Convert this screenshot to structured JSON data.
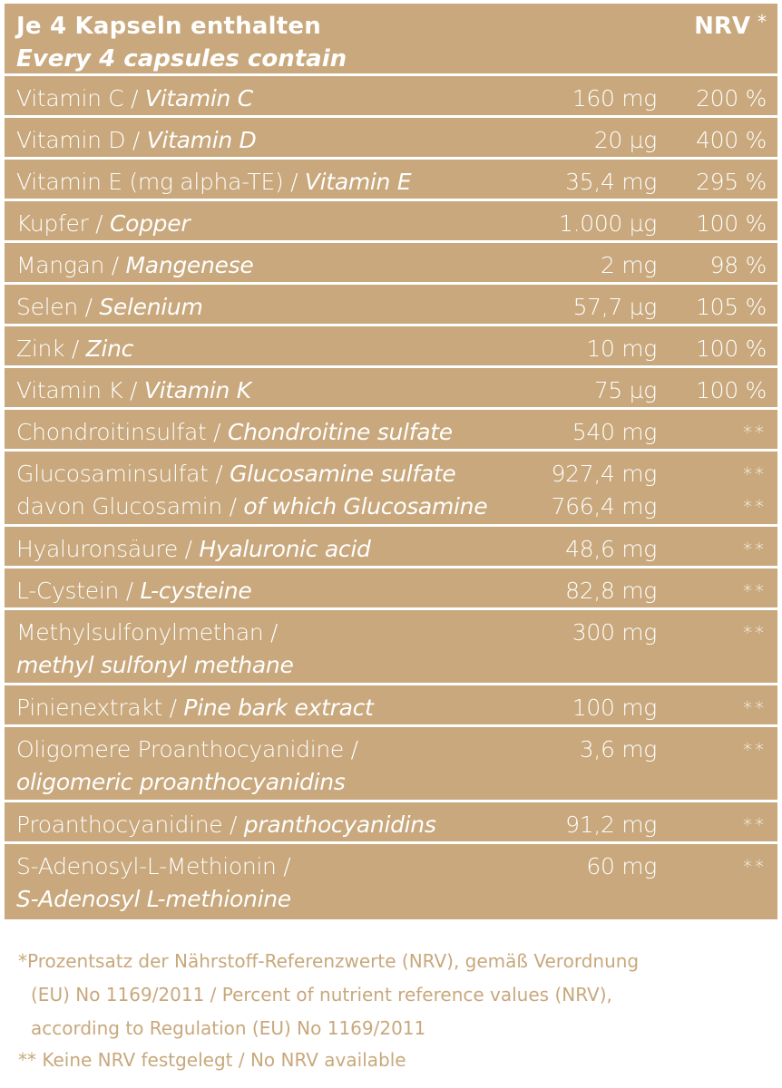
{
  "header": {
    "title_de": "Je 4 Kapseln enthalten",
    "title_en": "Every 4 capsules contain",
    "nrv_label": "NRV",
    "nrv_star": "*"
  },
  "rows": [
    {
      "name_de": "Vitamin C / ",
      "name_en": "Vitamin C",
      "amount": "160 mg",
      "nrv": "200 %"
    },
    {
      "name_de": "Vitamin D / ",
      "name_en": "Vitamin D",
      "amount": "20 µg",
      "nrv": "400 %"
    },
    {
      "name_de": "Vitamin E (mg alpha-TE) / ",
      "name_en": "Vitamin E",
      "amount": "35,4 mg",
      "nrv": "295 %"
    },
    {
      "name_de": "Kupfer / ",
      "name_en": "Copper",
      "amount": "1.000 µg",
      "nrv": "100 %"
    },
    {
      "name_de": "Mangan / ",
      "name_en": "Mangenese",
      "amount": "2 mg",
      "nrv": "98 %"
    },
    {
      "name_de": "Selen / ",
      "name_en": "Selenium",
      "amount": "57,7 µg",
      "nrv": "105 %"
    },
    {
      "name_de": "Zink / ",
      "name_en": "Zinc",
      "amount": "10 mg",
      "nrv": "100 %"
    },
    {
      "name_de": "Vitamin K / ",
      "name_en": "Vitamin K",
      "amount": "75 µg",
      "nrv": "100 %"
    },
    {
      "name_de": "Chondroitinsulfat / ",
      "name_en": "Chondroitine sulfate",
      "amount": "540 mg",
      "nrv": "**"
    },
    {
      "name_de": "Glucosaminsulfat / ",
      "name_en": "Glucosamine sulfate",
      "amount": "927,4 mg",
      "nrv": "**",
      "line2_de": "davon Glucosamin / ",
      "line2_en": "of which Glucosamine",
      "amount2": "766,4 mg",
      "nrv2": "**"
    },
    {
      "name_de": "Hyaluronsäure / ",
      "name_en": "Hyaluronic acid",
      "amount": "48,6 mg",
      "nrv": "**"
    },
    {
      "name_de": "L-Cystein / ",
      "name_en": "L-cysteine",
      "amount": "82,8 mg",
      "nrv": "**"
    },
    {
      "name_de": "Methylsulfonylmethan /",
      "name_en": "methyl sulfonyl methane",
      "amount": "300 mg",
      "nrv": "**"
    },
    {
      "name_de": "Pinienextrakt / ",
      "name_en": "Pine bark extract",
      "amount": "100 mg",
      "nrv": "**"
    },
    {
      "name_de": "Oligomere Proanthocyanidine /",
      "name_en": "oligomeric proanthocyanidins",
      "amount": "3,6 mg",
      "nrv": "**"
    },
    {
      "name_de": "Proanthocyanidine / ",
      "name_en": "pranthocyanidins",
      "amount": "91,2 mg",
      "nrv": "**"
    },
    {
      "name_de": "S-Adenosyl-L-Methionin /",
      "name_en": "S-Adenosyl L-methionine",
      "amount": "60 mg",
      "nrv": "**"
    }
  ],
  "footnote1": {
    "line1": "*Prozentsatz der Nährstoff-Referenzwerte (NRV), gemäß Verordnung",
    "line2": "(EU) No 1169/2011 / Percent of nutrient reference values (NRV),",
    "line3": "according to Regulation (EU) No 1169/2011"
  },
  "footnote2": "** Keine NRV festgelegt / No NRV available",
  "colors": {
    "brand": "#c8a87c",
    "text_on_brand": "#ffffff"
  }
}
